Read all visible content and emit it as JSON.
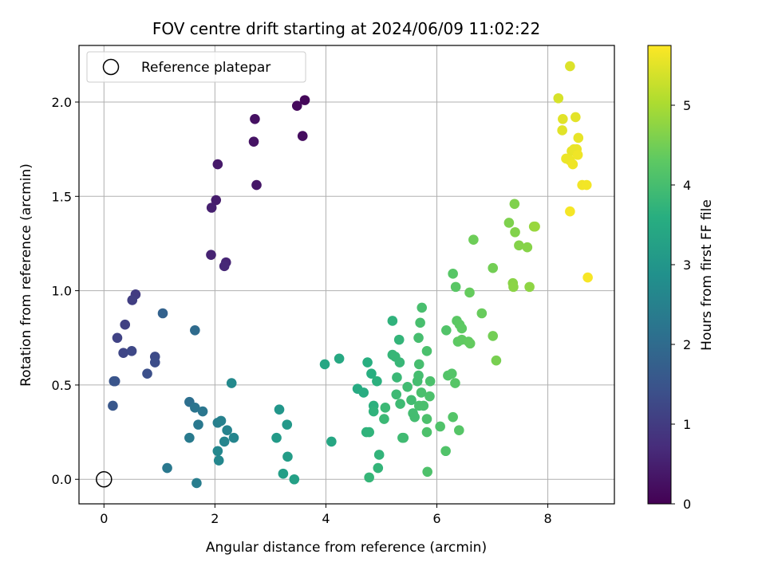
{
  "chart_data": {
    "type": "scatter",
    "title": "FOV centre drift starting at 2024/06/09 11:02:22",
    "xlabel": "Angular distance from reference (arcmin)",
    "ylabel": "Rotation from reference (arcmin)",
    "xlim": [
      -0.45,
      9.2
    ],
    "ylim": [
      -0.13,
      2.3
    ],
    "xticks": [
      "0",
      "2",
      "4",
      "6",
      "8"
    ],
    "yticks": [
      "0.0",
      "0.5",
      "1.0",
      "1.5",
      "2.0"
    ],
    "grid": true,
    "legend": {
      "position": "top-left",
      "entries": [
        "Reference platepar"
      ]
    },
    "reference_point": {
      "x": 0,
      "y": 0
    },
    "colorbar": {
      "label": "Hours from first FF file",
      "range": [
        0,
        5.75
      ],
      "ticks": [
        "0",
        "1",
        "2",
        "3",
        "4",
        "5"
      ],
      "colormap": "viridis"
    },
    "points": [
      {
        "x": 3.62,
        "y": 2.01,
        "h": 0.1
      },
      {
        "x": 3.48,
        "y": 1.98,
        "h": 0.15
      },
      {
        "x": 3.58,
        "y": 1.82,
        "h": 0.2
      },
      {
        "x": 2.72,
        "y": 1.91,
        "h": 0.25
      },
      {
        "x": 2.7,
        "y": 1.79,
        "h": 0.3
      },
      {
        "x": 2.75,
        "y": 1.56,
        "h": 0.35
      },
      {
        "x": 2.05,
        "y": 1.67,
        "h": 0.4
      },
      {
        "x": 2.02,
        "y": 1.48,
        "h": 0.45
      },
      {
        "x": 1.94,
        "y": 1.44,
        "h": 0.5
      },
      {
        "x": 1.93,
        "y": 1.19,
        "h": 0.55
      },
      {
        "x": 2.2,
        "y": 1.15,
        "h": 0.6
      },
      {
        "x": 2.17,
        "y": 1.13,
        "h": 0.65
      },
      {
        "x": 0.57,
        "y": 0.98,
        "h": 1.0
      },
      {
        "x": 0.51,
        "y": 0.95,
        "h": 1.05
      },
      {
        "x": 0.38,
        "y": 0.82,
        "h": 1.1
      },
      {
        "x": 0.24,
        "y": 0.75,
        "h": 1.15
      },
      {
        "x": 0.35,
        "y": 0.67,
        "h": 1.2
      },
      {
        "x": 0.5,
        "y": 0.68,
        "h": 1.25
      },
      {
        "x": 0.92,
        "y": 0.65,
        "h": 1.3
      },
      {
        "x": 0.92,
        "y": 0.62,
        "h": 1.35
      },
      {
        "x": 0.78,
        "y": 0.56,
        "h": 1.4
      },
      {
        "x": 0.2,
        "y": 0.52,
        "h": 1.45
      },
      {
        "x": 0.18,
        "y": 0.52,
        "h": 1.5
      },
      {
        "x": 0.16,
        "y": 0.39,
        "h": 1.55
      },
      {
        "x": 1.06,
        "y": 0.88,
        "h": 1.8
      },
      {
        "x": 1.64,
        "y": 0.79,
        "h": 2.0
      },
      {
        "x": 1.54,
        "y": 0.41,
        "h": 2.1
      },
      {
        "x": 1.64,
        "y": 0.38,
        "h": 2.2
      },
      {
        "x": 1.78,
        "y": 0.36,
        "h": 2.25
      },
      {
        "x": 1.7,
        "y": 0.29,
        "h": 2.3
      },
      {
        "x": 1.54,
        "y": 0.22,
        "h": 2.35
      },
      {
        "x": 1.14,
        "y": 0.06,
        "h": 2.3
      },
      {
        "x": 1.67,
        "y": -0.02,
        "h": 2.4
      },
      {
        "x": 2.05,
        "y": 0.3,
        "h": 2.45
      },
      {
        "x": 2.11,
        "y": 0.31,
        "h": 2.5
      },
      {
        "x": 2.22,
        "y": 0.26,
        "h": 2.55
      },
      {
        "x": 2.17,
        "y": 0.2,
        "h": 2.6
      },
      {
        "x": 2.34,
        "y": 0.22,
        "h": 2.6
      },
      {
        "x": 2.05,
        "y": 0.15,
        "h": 2.65
      },
      {
        "x": 2.07,
        "y": 0.1,
        "h": 2.65
      },
      {
        "x": 2.3,
        "y": 0.51,
        "h": 2.7
      },
      {
        "x": 3.16,
        "y": 0.37,
        "h": 3.0
      },
      {
        "x": 3.3,
        "y": 0.29,
        "h": 3.05
      },
      {
        "x": 3.11,
        "y": 0.22,
        "h": 3.1
      },
      {
        "x": 3.31,
        "y": 0.12,
        "h": 3.15
      },
      {
        "x": 3.23,
        "y": 0.03,
        "h": 3.2
      },
      {
        "x": 3.43,
        "y": 0.0,
        "h": 3.25
      },
      {
        "x": 3.98,
        "y": 0.61,
        "h": 3.4
      },
      {
        "x": 4.24,
        "y": 0.64,
        "h": 3.45
      },
      {
        "x": 4.1,
        "y": 0.2,
        "h": 3.4
      },
      {
        "x": 4.57,
        "y": 0.48,
        "h": 3.5
      },
      {
        "x": 4.68,
        "y": 0.46,
        "h": 3.55
      },
      {
        "x": 4.75,
        "y": 0.62,
        "h": 3.6
      },
      {
        "x": 4.82,
        "y": 0.56,
        "h": 3.6
      },
      {
        "x": 4.92,
        "y": 0.52,
        "h": 3.65
      },
      {
        "x": 4.86,
        "y": 0.39,
        "h": 3.65
      },
      {
        "x": 4.86,
        "y": 0.36,
        "h": 3.7
      },
      {
        "x": 4.73,
        "y": 0.25,
        "h": 3.7
      },
      {
        "x": 4.78,
        "y": 0.25,
        "h": 3.72
      },
      {
        "x": 4.96,
        "y": 0.13,
        "h": 3.74
      },
      {
        "x": 4.94,
        "y": 0.06,
        "h": 3.76
      },
      {
        "x": 4.78,
        "y": 0.01,
        "h": 3.78
      },
      {
        "x": 5.2,
        "y": 0.84,
        "h": 3.7
      },
      {
        "x": 5.32,
        "y": 0.74,
        "h": 3.75
      },
      {
        "x": 5.2,
        "y": 0.66,
        "h": 3.78
      },
      {
        "x": 5.25,
        "y": 0.65,
        "h": 3.8
      },
      {
        "x": 5.33,
        "y": 0.62,
        "h": 3.82
      },
      {
        "x": 5.28,
        "y": 0.54,
        "h": 3.84
      },
      {
        "x": 5.07,
        "y": 0.38,
        "h": 3.86
      },
      {
        "x": 5.05,
        "y": 0.32,
        "h": 3.86
      },
      {
        "x": 5.27,
        "y": 0.45,
        "h": 3.88
      },
      {
        "x": 5.34,
        "y": 0.4,
        "h": 3.9
      },
      {
        "x": 5.38,
        "y": 0.22,
        "h": 3.9
      },
      {
        "x": 5.4,
        "y": 0.22,
        "h": 3.92
      },
      {
        "x": 5.47,
        "y": 0.49,
        "h": 3.94
      },
      {
        "x": 5.54,
        "y": 0.42,
        "h": 3.95
      },
      {
        "x": 5.57,
        "y": 0.35,
        "h": 3.96
      },
      {
        "x": 5.6,
        "y": 0.33,
        "h": 3.97
      },
      {
        "x": 5.65,
        "y": 0.52,
        "h": 3.98
      },
      {
        "x": 5.67,
        "y": 0.55,
        "h": 3.99
      },
      {
        "x": 5.68,
        "y": 0.61,
        "h": 4.0
      },
      {
        "x": 5.67,
        "y": 0.75,
        "h": 4.0
      },
      {
        "x": 5.7,
        "y": 0.83,
        "h": 4.02
      },
      {
        "x": 5.73,
        "y": 0.91,
        "h": 4.03
      },
      {
        "x": 5.72,
        "y": 0.46,
        "h": 4.04
      },
      {
        "x": 5.68,
        "y": 0.39,
        "h": 4.04
      },
      {
        "x": 5.76,
        "y": 0.39,
        "h": 4.05
      },
      {
        "x": 5.82,
        "y": 0.68,
        "h": 4.06
      },
      {
        "x": 5.88,
        "y": 0.52,
        "h": 4.07
      },
      {
        "x": 5.87,
        "y": 0.44,
        "h": 4.08
      },
      {
        "x": 5.82,
        "y": 0.32,
        "h": 4.08
      },
      {
        "x": 5.82,
        "y": 0.25,
        "h": 4.09
      },
      {
        "x": 5.83,
        "y": 0.04,
        "h": 4.1
      },
      {
        "x": 6.06,
        "y": 0.28,
        "h": 4.12
      },
      {
        "x": 6.16,
        "y": 0.15,
        "h": 4.14
      },
      {
        "x": 6.17,
        "y": 0.79,
        "h": 4.15
      },
      {
        "x": 6.2,
        "y": 0.55,
        "h": 4.16
      },
      {
        "x": 6.27,
        "y": 0.56,
        "h": 4.18
      },
      {
        "x": 6.29,
        "y": 0.33,
        "h": 4.18
      },
      {
        "x": 6.33,
        "y": 0.51,
        "h": 4.2
      },
      {
        "x": 6.4,
        "y": 0.26,
        "h": 4.2
      },
      {
        "x": 6.29,
        "y": 1.09,
        "h": 4.22
      },
      {
        "x": 6.34,
        "y": 1.02,
        "h": 4.24
      },
      {
        "x": 6.36,
        "y": 0.84,
        "h": 4.26
      },
      {
        "x": 6.41,
        "y": 0.82,
        "h": 4.28
      },
      {
        "x": 6.45,
        "y": 0.8,
        "h": 4.3
      },
      {
        "x": 6.38,
        "y": 0.73,
        "h": 4.3
      },
      {
        "x": 6.45,
        "y": 0.74,
        "h": 4.32
      },
      {
        "x": 6.57,
        "y": 0.73,
        "h": 4.34
      },
      {
        "x": 6.6,
        "y": 0.72,
        "h": 4.36
      },
      {
        "x": 6.59,
        "y": 0.99,
        "h": 4.38
      },
      {
        "x": 6.66,
        "y": 1.27,
        "h": 4.45
      },
      {
        "x": 6.81,
        "y": 0.88,
        "h": 4.4
      },
      {
        "x": 7.01,
        "y": 1.12,
        "h": 4.5
      },
      {
        "x": 7.01,
        "y": 0.76,
        "h": 4.5
      },
      {
        "x": 7.07,
        "y": 0.63,
        "h": 4.55
      },
      {
        "x": 7.3,
        "y": 1.36,
        "h": 4.6
      },
      {
        "x": 7.4,
        "y": 1.46,
        "h": 4.62
      },
      {
        "x": 7.41,
        "y": 1.31,
        "h": 4.64
      },
      {
        "x": 7.48,
        "y": 1.24,
        "h": 4.66
      },
      {
        "x": 7.63,
        "y": 1.23,
        "h": 4.68
      },
      {
        "x": 7.37,
        "y": 1.04,
        "h": 4.7
      },
      {
        "x": 7.38,
        "y": 1.02,
        "h": 4.72
      },
      {
        "x": 7.67,
        "y": 1.02,
        "h": 4.75
      },
      {
        "x": 7.75,
        "y": 1.34,
        "h": 4.8
      },
      {
        "x": 7.77,
        "y": 1.34,
        "h": 4.85
      },
      {
        "x": 8.19,
        "y": 2.02,
        "h": 5.4
      },
      {
        "x": 8.4,
        "y": 2.19,
        "h": 5.45
      },
      {
        "x": 8.27,
        "y": 1.91,
        "h": 5.5
      },
      {
        "x": 8.26,
        "y": 1.85,
        "h": 5.5
      },
      {
        "x": 8.5,
        "y": 1.92,
        "h": 5.52
      },
      {
        "x": 8.55,
        "y": 1.81,
        "h": 5.55
      },
      {
        "x": 8.43,
        "y": 1.74,
        "h": 5.55
      },
      {
        "x": 8.47,
        "y": 1.75,
        "h": 5.57
      },
      {
        "x": 8.52,
        "y": 1.75,
        "h": 5.58
      },
      {
        "x": 8.33,
        "y": 1.7,
        "h": 5.6
      },
      {
        "x": 8.4,
        "y": 1.69,
        "h": 5.6
      },
      {
        "x": 8.45,
        "y": 1.67,
        "h": 5.62
      },
      {
        "x": 8.54,
        "y": 1.72,
        "h": 5.62
      },
      {
        "x": 8.62,
        "y": 1.56,
        "h": 5.65
      },
      {
        "x": 8.7,
        "y": 1.56,
        "h": 5.66
      },
      {
        "x": 8.4,
        "y": 1.42,
        "h": 5.68
      },
      {
        "x": 8.72,
        "y": 1.07,
        "h": 5.7
      }
    ]
  }
}
